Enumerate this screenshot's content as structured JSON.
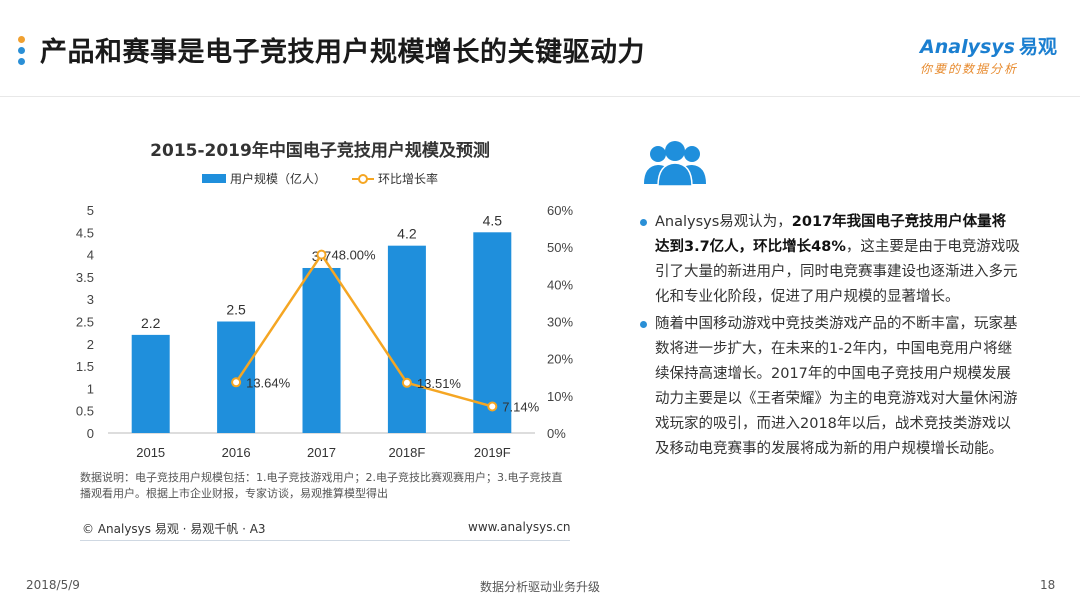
{
  "header": {
    "title": "产品和赛事是电子竞技用户规模增长的关键驱动力",
    "logo_text": "nalysys",
    "logo_letter": "A",
    "logo_cn": "易观",
    "logo_sub": "你要的数据分析",
    "dot_colors": [
      "#f0a030",
      "#2a8fd6",
      "#2a8fd6"
    ]
  },
  "chart_data": {
    "type": "bar+line",
    "title": "2015-2019年中国电子竞技用户规模及预测",
    "categories": [
      "2015",
      "2016",
      "2017",
      "2018F",
      "2019F"
    ],
    "series": [
      {
        "name": "用户规模（亿人）",
        "type": "bar",
        "axis": "left",
        "values": [
          2.2,
          2.5,
          3.7,
          4.2,
          4.5
        ],
        "labels": [
          "2.2",
          "2.5",
          "3.7",
          "4.2",
          "4.5"
        ],
        "color": "#1f8fdc"
      },
      {
        "name": "环比增长率",
        "type": "line",
        "axis": "right",
        "values": [
          null,
          13.64,
          48.0,
          13.51,
          7.14
        ],
        "labels": [
          "",
          "13.64%",
          "48.00%",
          "13.51%",
          "7.14%"
        ],
        "color": "#f5a623"
      }
    ],
    "y_left": {
      "min": 0,
      "max": 5,
      "ticks": [
        "0",
        "0.5",
        "1",
        "1.5",
        "2",
        "2.5",
        "3",
        "3.5",
        "4",
        "4.5",
        "5"
      ]
    },
    "y_right": {
      "min": 0,
      "max": 60,
      "ticks": [
        "0%",
        "10%",
        "20%",
        "30%",
        "40%",
        "50%",
        "60%"
      ]
    },
    "legend_position": "top"
  },
  "note": "数据说明：电子竞技用户规模包括：1.电子竞技游戏用户；2.电子竞技比赛观赛用户；3.电子竞技直播观看用户。根据上市企业财报，专家访谈，易观推算模型得出",
  "footer": {
    "copyright": "© Analysys 易观 · 易观千帆 · A3",
    "url": "www.analysys.cn"
  },
  "right_panel": {
    "icon": "people-icon",
    "bullet1": {
      "pre": "Analysys易观认为，",
      "bold": "2017年我国电子竞技用户体量将达到3.7亿人，环比增长48%",
      "post": "，这主要是由于电竞游戏吸引了大量的新进用户，同时电竞赛事建设也逐渐进入多元化和专业化阶段，促进了用户规模的显著增长。"
    },
    "bullet2": "随着中国移动游戏中竞技类游戏产品的不断丰富，玩家基数将进一步扩大，在未来的1-2年内，中国电竞用户将继续保持高速增长。2017年的中国电子竞技用户规模发展动力主要是以《王者荣耀》为主的电竞游戏对大量休闲游戏玩家的吸引，而进入2018年以后，战术竞技类游戏以及移动电竞赛事的发展将成为新的用户规模增长动能。"
  },
  "bottom": {
    "date": "2018/5/9",
    "center": "数据分析驱动业务升级",
    "page": "18"
  }
}
